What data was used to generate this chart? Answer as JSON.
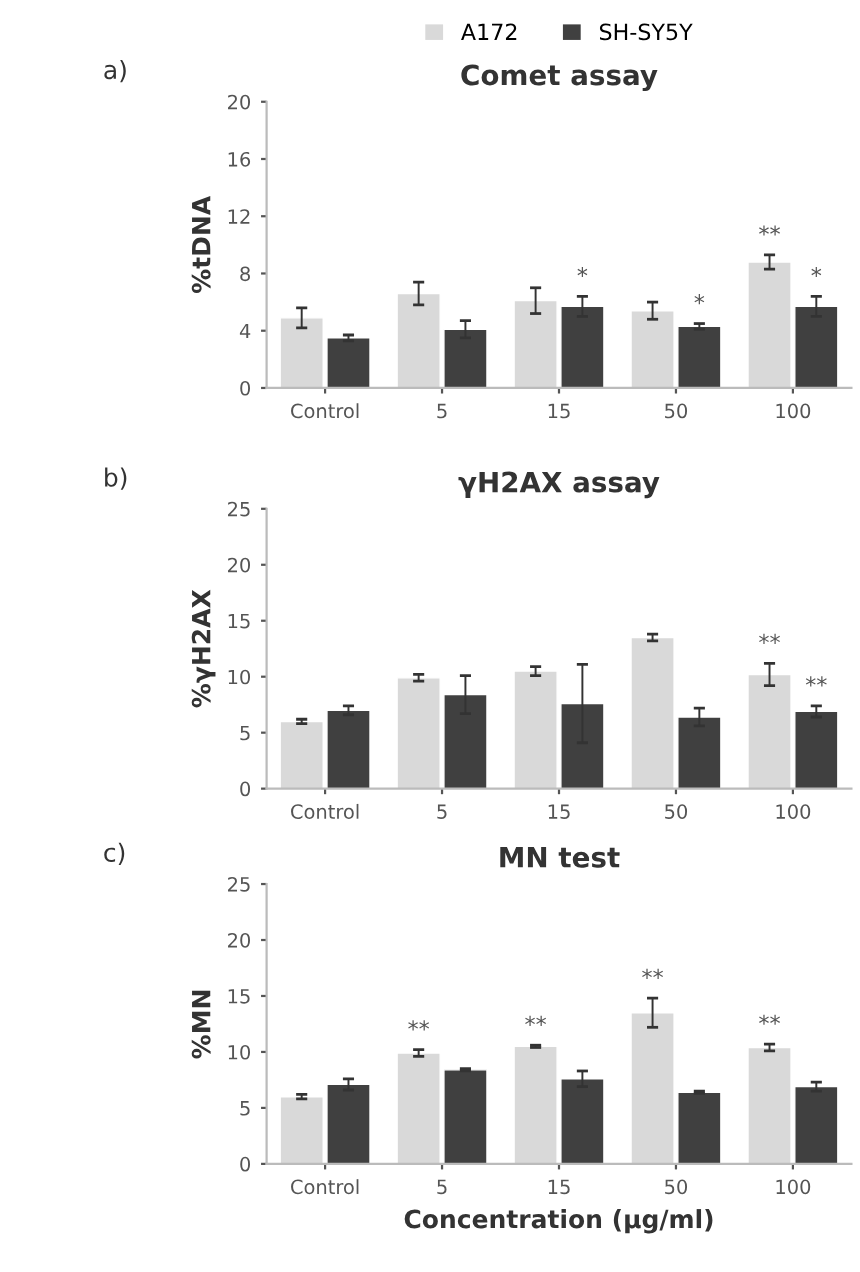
{
  "chart_data": [
    {
      "type": "bar",
      "title": "Comet assay",
      "ylabel": "%tDNA",
      "categories": [
        "Control",
        "5",
        "15",
        "50",
        "100"
      ],
      "ylim": [
        0,
        20
      ],
      "yticks": [
        0,
        4,
        8,
        12,
        16,
        20
      ],
      "grid": false,
      "legend": "top",
      "series": [
        {
          "name": "A172",
          "color": "#d9d9d9",
          "values": [
            4.9,
            6.6,
            6.1,
            5.4,
            8.8
          ],
          "errors": [
            0.7,
            0.8,
            0.9,
            0.6,
            0.5
          ]
        },
        {
          "name": "SH-SY5Y",
          "color": "#404040",
          "values": [
            3.5,
            4.1,
            5.7,
            4.3,
            5.7
          ],
          "errors": [
            0.2,
            0.6,
            0.7,
            0.2,
            0.7
          ]
        }
      ],
      "annotations": [
        "a)",
        {
          "text": "*",
          "x": "15",
          "y": 5.7
        },
        {
          "text": "*",
          "x": "50",
          "y": 4.3
        },
        {
          "text": "**",
          "x": "100",
          "y": 8.8
        },
        {
          "text": "*",
          "x": "100",
          "y": 5.7
        }
      ]
    },
    {
      "type": "bar",
      "title": "γH2AX assay",
      "ylabel": "%γH2AX",
      "categories": [
        "Control",
        "5",
        "15",
        "50",
        "100"
      ],
      "ylim": [
        0,
        25
      ],
      "yticks": [
        0,
        5,
        10,
        15,
        20,
        25
      ],
      "grid": false,
      "series": [
        {
          "color": "#d9d9d9",
          "values": [
            6.0,
            9.9,
            10.5,
            13.5,
            10.2
          ],
          "errors": [
            0.2,
            0.3,
            0.4,
            0.3,
            1.0
          ]
        },
        {
          "color": "#404040",
          "values": [
            7.0,
            8.4,
            7.6,
            6.4,
            6.9
          ],
          "errors": [
            0.4,
            1.7,
            3.5,
            0.8,
            0.5
          ]
        }
      ],
      "annotations": [
        "b)",
        {
          "text": "**",
          "x": "100",
          "y": 10.2
        },
        {
          "text": "**",
          "x": "100",
          "y": 6.9
        }
      ]
    },
    {
      "type": "bar",
      "title": "MN test",
      "ylabel": "%MN",
      "xlabel": "Concentration (µg/ml)",
      "categories": [
        "Control",
        "5",
        "15",
        "50",
        "100"
      ],
      "ylim": [
        0,
        25
      ],
      "yticks": [
        0,
        5,
        10,
        15,
        20,
        25
      ],
      "grid": false,
      "series": [
        {
          "color": "#d9d9d9",
          "values": [
            6.0,
            9.9,
            10.5,
            13.5,
            10.4
          ],
          "errors": [
            0.2,
            0.3,
            0.1,
            1.3,
            0.3
          ]
        },
        {
          "color": "#404040",
          "values": [
            7.1,
            8.4,
            7.6,
            6.4,
            6.9
          ],
          "errors": [
            0.5,
            0.1,
            0.7,
            0.1,
            0.4
          ]
        }
      ],
      "annotations": [
        "c)",
        {
          "text": "**",
          "x": "5",
          "y": 9.9
        },
        {
          "text": "**",
          "x": "15",
          "y": 10.5
        },
        {
          "text": "**",
          "x": "50",
          "y": 13.5
        },
        {
          "text": "**",
          "x": "100",
          "y": 10.4
        }
      ]
    }
  ]
}
